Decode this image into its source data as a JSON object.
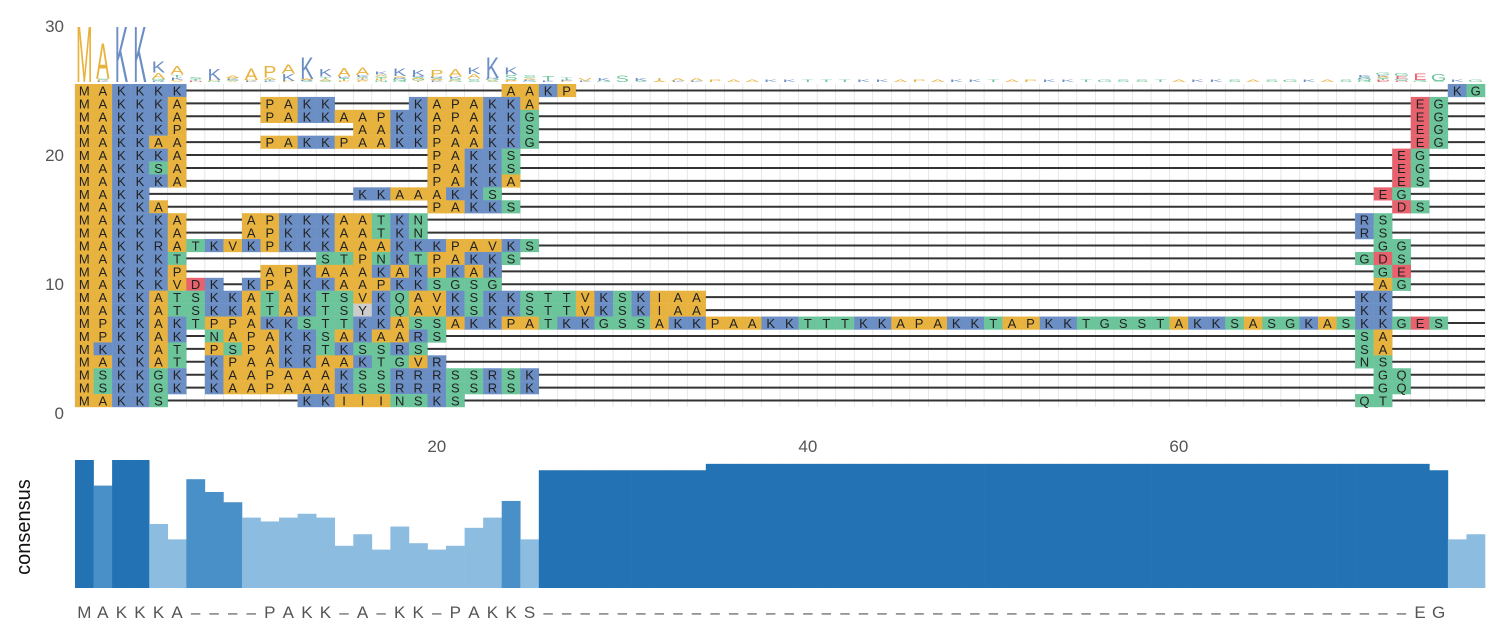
{
  "colors": {
    "A": "#E8B23E",
    "P": "#E8B23E",
    "I": "#E8B23E",
    "V": "#E8B23E",
    "M": "#E8B23E",
    "L": "#E8B23E",
    "K": "#6B8EC4",
    "R": "#6B8EC4",
    "S": "#6CC59A",
    "T": "#6CC59A",
    "N": "#6CC59A",
    "Q": "#6CC59A",
    "G": "#6CC59A",
    "D": "#E8626E",
    "E": "#E8626E",
    "gap_line": "#333333",
    "grid": "#d8d8d8",
    "bar_dark": "#2272b4",
    "bar_mid": "#4a90c8",
    "bar_light": "#8cbcdf"
  },
  "chart_data": {
    "type": "sequence-alignment",
    "num_columns": 76,
    "yaxis": {
      "ticks": [
        0,
        10,
        20,
        30
      ],
      "ylim": [
        0,
        30
      ]
    },
    "xaxis": {
      "ticks": [
        20,
        40,
        60
      ]
    },
    "consensus_label": "consensus",
    "consensus_sequence": "MAKKKA----PAKK-A-KK-PAKKS-----------------------------------------------EG",
    "logo_top": "MAKKKA    PAKKAAKKAAPAKKS",
    "sequences": [
      "MAKKKK-----------------AAKP-----------------------------------------------KG",
      "MAKKKA----PAKK----KAPAKKA-----------------------------------------------EG",
      "MAKKKA----PAKKAAPKKAPAKKG-----------------------------------------------EG",
      "MAKKKP---------AAKKPAAKKS-----------------------------------------------EG",
      "MAKKAA----PAKKPAAKKPAAKKG-----------------------------------------------EG",
      "MAKKKA-------------PAKKS-----------------------------------------------EG",
      "MAKKSA-------------PAKKS-----------------------------------------------EG",
      "MAKKKA-------------PAKKA-----------------------------------------------ES",
      "MAKK-----------KKAAAKKS-----------------------------------------------EG",
      "MAKKA--------------PAKKS-----------------------------------------------DS",
      "MAKKKA---APKKKAATKN--------------------------------------------------RS",
      "MAKKKA---APKKKAATKN--------------------------------------------------RS",
      "MAKKRATKVKPKKKAAAKKKPAVKS---------------------------------------------GG",
      "MAKKKT-------STPNKTPAKKS---------------------------------------------GDS",
      "MAKKKP----APKAAAKAKPKAK-----------------------------------------------GE",
      "MAKKKVDK-KPAKKAAPKKSGSG-----------------------------------------------AG",
      "MAKKATSKKATAKTSVKQAVKSKKSTTVKSKIAA-----------------------------------KK",
      "MAKKATSKKATAKTSYKQAVKSKKSTTVKSKIAA-----------------------------------KK",
      "MPKKAKTPPAKKSTTKKASSAKKPATKKGSSAKKPAAKKTTTKKAPAKKTAPKKTGSSTAKKSASGKASKKGES",
      "MPKKAK-NAPAKKSAKAARS-------------------------------------------------SA",
      "MKKKAT-PSPAKRTKSSRS--------------------------------------------------SA",
      "MAKKAT-KPAAKKAAKTGVR-------------------------------------------------NS",
      "MSKKGK-KAAPAAAKSSRRRSSRSK---------------------------------------------GQ",
      "MSKKGK-KAAPAAAKSSRRRSSRSK---------------------------------------------GQ",
      "MAKKS-------KKIIINSKS------------------------------------------------QT"
    ],
    "consensus_values": [
      1.0,
      0.8,
      1.0,
      1.0,
      0.5,
      0.38,
      0.85,
      0.75,
      0.67,
      0.55,
      0.52,
      0.55,
      0.58,
      0.55,
      0.33,
      0.42,
      0.3,
      0.48,
      0.35,
      0.3,
      0.33,
      0.47,
      0.55,
      0.68,
      0.38,
      0.92,
      0.92,
      0.92,
      0.92,
      0.92,
      0.92,
      0.92,
      0.92,
      0.92,
      0.97,
      0.97,
      0.97,
      0.97,
      0.97,
      0.97,
      0.97,
      0.97,
      0.97,
      0.97,
      0.97,
      0.97,
      0.97,
      0.97,
      0.97,
      0.97,
      0.97,
      0.97,
      0.97,
      0.97,
      0.97,
      0.97,
      0.97,
      0.97,
      0.97,
      0.97,
      0.97,
      0.97,
      0.97,
      0.97,
      0.97,
      0.97,
      0.97,
      0.97,
      0.97,
      0.97,
      0.97,
      0.97,
      0.97,
      0.92,
      0.38,
      0.42
    ]
  }
}
